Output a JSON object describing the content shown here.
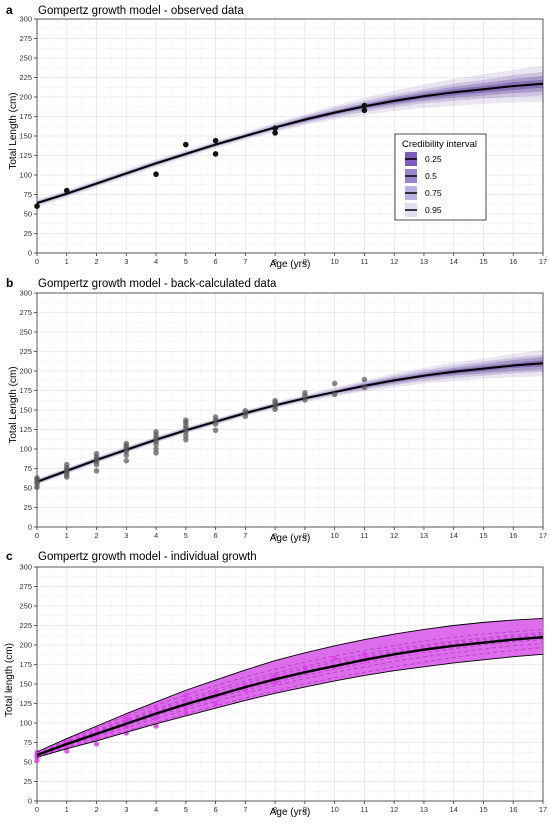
{
  "colors": {
    "observed_point": "#111111",
    "backcalc_point": "#555555",
    "growth_line": "#000000",
    "ci_fill": "#5a3a9a",
    "individual_band": "#d655e8",
    "individual_lines": "#c040d0",
    "individual_points": "#d93de8",
    "grid": "#e6e6e6"
  },
  "legend": {
    "title": "Credibility interval",
    "items": [
      "0.25",
      "0.5",
      "0.75",
      "0.95"
    ]
  },
  "panels": [
    {
      "letter": "a",
      "title": "Gompertz growth model - observed data",
      "xlabel": "Age (yrs)",
      "ylabel": "Total Length (cm)"
    },
    {
      "letter": "b",
      "title": "Gompertz growth model - back-calculated data",
      "xlabel": "Age (yrs)",
      "ylabel": "Total Length (cm)"
    },
    {
      "letter": "c",
      "title": "Gompertz growth model - individual growth",
      "xlabel": "Age (yrs)",
      "ylabel": "Total length (cm)"
    }
  ],
  "chart_data": [
    {
      "type": "scatter",
      "title": "Gompertz growth model - observed data",
      "xlabel": "Age (yrs)",
      "ylabel": "Total Length (cm)",
      "xlim": [
        0,
        17
      ],
      "ylim": [
        0,
        300
      ],
      "x_ticks": [
        0,
        1,
        2,
        3,
        4,
        5,
        6,
        7,
        8,
        9,
        10,
        11,
        12,
        13,
        14,
        15,
        16,
        17
      ],
      "y_ticks": [
        0,
        25,
        50,
        75,
        100,
        125,
        150,
        175,
        200,
        225,
        250,
        275,
        300
      ],
      "grid": true,
      "legend_placement": "right",
      "legend_title": "Credibility interval",
      "legend_items": [
        "0.25",
        "0.5",
        "0.75",
        "0.95"
      ],
      "points": [
        {
          "x": 0,
          "y": 60
        },
        {
          "x": 1,
          "y": 80
        },
        {
          "x": 4,
          "y": 101
        },
        {
          "x": 5,
          "y": 139
        },
        {
          "x": 6,
          "y": 144
        },
        {
          "x": 6,
          "y": 127
        },
        {
          "x": 8,
          "y": 160
        },
        {
          "x": 8,
          "y": 154
        },
        {
          "x": 11,
          "y": 189
        },
        {
          "x": 11,
          "y": 183
        }
      ],
      "curve": {
        "x": [
          0,
          1,
          2,
          3,
          4,
          5,
          6,
          7,
          8,
          9,
          10,
          11,
          12,
          13,
          14,
          15,
          16,
          17
        ],
        "y": [
          64,
          76,
          89,
          102,
          115,
          127,
          139,
          150,
          161,
          171,
          180,
          188,
          195,
          201,
          206,
          210,
          214,
          217
        ]
      },
      "ci_half_width": {
        "0.25": [
          1,
          1,
          1,
          1,
          1,
          1,
          1,
          1,
          1,
          2,
          2,
          2,
          3,
          3,
          4,
          4,
          5,
          5
        ],
        "0.5": [
          2,
          2,
          2,
          2,
          2,
          2,
          2,
          2,
          2,
          3,
          3,
          4,
          5,
          6,
          7,
          8,
          9,
          10
        ],
        "0.75": [
          3,
          3,
          3,
          3,
          3,
          3,
          3,
          3,
          4,
          5,
          6,
          7,
          8,
          9,
          11,
          12,
          14,
          15
        ],
        "0.95": [
          5,
          5,
          5,
          5,
          5,
          5,
          5,
          5,
          6,
          7,
          9,
          11,
          13,
          15,
          17,
          19,
          21,
          23
        ]
      }
    },
    {
      "type": "scatter",
      "title": "Gompertz growth model - back-calculated data",
      "xlabel": "Age (yrs)",
      "ylabel": "Total Length (cm)",
      "xlim": [
        0,
        17
      ],
      "ylim": [
        0,
        300
      ],
      "x_ticks": [
        0,
        1,
        2,
        3,
        4,
        5,
        6,
        7,
        8,
        9,
        10,
        11,
        12,
        13,
        14,
        15,
        16,
        17
      ],
      "y_ticks": [
        0,
        25,
        50,
        75,
        100,
        125,
        150,
        175,
        200,
        225,
        250,
        275,
        300
      ],
      "grid": true,
      "points": [
        {
          "x": 0,
          "y": 51
        },
        {
          "x": 0,
          "y": 55
        },
        {
          "x": 0,
          "y": 58
        },
        {
          "x": 0,
          "y": 61
        },
        {
          "x": 0,
          "y": 63
        },
        {
          "x": 1,
          "y": 64
        },
        {
          "x": 1,
          "y": 67
        },
        {
          "x": 1,
          "y": 70
        },
        {
          "x": 1,
          "y": 73
        },
        {
          "x": 1,
          "y": 76
        },
        {
          "x": 1,
          "y": 80
        },
        {
          "x": 2,
          "y": 72
        },
        {
          "x": 2,
          "y": 80
        },
        {
          "x": 2,
          "y": 84
        },
        {
          "x": 2,
          "y": 87
        },
        {
          "x": 2,
          "y": 90
        },
        {
          "x": 2,
          "y": 94
        },
        {
          "x": 3,
          "y": 85
        },
        {
          "x": 3,
          "y": 92
        },
        {
          "x": 3,
          "y": 97
        },
        {
          "x": 3,
          "y": 101
        },
        {
          "x": 3,
          "y": 104
        },
        {
          "x": 3,
          "y": 107
        },
        {
          "x": 4,
          "y": 95
        },
        {
          "x": 4,
          "y": 100
        },
        {
          "x": 4,
          "y": 106
        },
        {
          "x": 4,
          "y": 110
        },
        {
          "x": 4,
          "y": 114
        },
        {
          "x": 4,
          "y": 118
        },
        {
          "x": 4,
          "y": 122
        },
        {
          "x": 5,
          "y": 112
        },
        {
          "x": 5,
          "y": 117
        },
        {
          "x": 5,
          "y": 122
        },
        {
          "x": 5,
          "y": 126
        },
        {
          "x": 5,
          "y": 130
        },
        {
          "x": 5,
          "y": 134
        },
        {
          "x": 5,
          "y": 137
        },
        {
          "x": 6,
          "y": 124
        },
        {
          "x": 6,
          "y": 132
        },
        {
          "x": 6,
          "y": 137
        },
        {
          "x": 6,
          "y": 141
        },
        {
          "x": 7,
          "y": 142
        },
        {
          "x": 7,
          "y": 146
        },
        {
          "x": 7,
          "y": 149
        },
        {
          "x": 8,
          "y": 151
        },
        {
          "x": 8,
          "y": 155
        },
        {
          "x": 8,
          "y": 159
        },
        {
          "x": 8,
          "y": 162
        },
        {
          "x": 9,
          "y": 163
        },
        {
          "x": 9,
          "y": 168
        },
        {
          "x": 9,
          "y": 172
        },
        {
          "x": 10,
          "y": 170
        },
        {
          "x": 10,
          "y": 184
        },
        {
          "x": 11,
          "y": 179
        },
        {
          "x": 11,
          "y": 189
        }
      ],
      "curve": {
        "x": [
          0,
          1,
          2,
          3,
          4,
          5,
          6,
          7,
          8,
          9,
          10,
          11,
          12,
          13,
          14,
          15,
          16,
          17
        ],
        "y": [
          58,
          72,
          86,
          99,
          112,
          124,
          135,
          146,
          156,
          165,
          173,
          181,
          188,
          194,
          199,
          203,
          207,
          210
        ]
      },
      "ci_half_width": {
        "0.25": [
          1,
          1,
          1,
          1,
          1,
          1,
          1,
          1,
          1,
          1,
          1,
          2,
          2,
          2,
          3,
          3,
          3,
          4
        ],
        "0.5": [
          2,
          2,
          2,
          2,
          2,
          2,
          2,
          2,
          2,
          2,
          2,
          3,
          4,
          4,
          5,
          6,
          7,
          8
        ],
        "0.75": [
          3,
          3,
          3,
          3,
          3,
          3,
          3,
          3,
          3,
          3,
          4,
          5,
          6,
          7,
          8,
          9,
          10,
          11
        ],
        "0.95": [
          4,
          4,
          4,
          4,
          4,
          4,
          4,
          4,
          4,
          5,
          6,
          7,
          9,
          10,
          12,
          13,
          15,
          17
        ]
      }
    },
    {
      "type": "line",
      "title": "Gompertz growth model - individual growth",
      "xlabel": "Age (yrs)",
      "ylabel": "Total length (cm)",
      "xlim": [
        0,
        17
      ],
      "ylim": [
        0,
        300
      ],
      "x_ticks": [
        0,
        1,
        2,
        3,
        4,
        5,
        6,
        7,
        8,
        9,
        10,
        11,
        12,
        13,
        14,
        15,
        16,
        17
      ],
      "y_ticks": [
        0,
        25,
        50,
        75,
        100,
        125,
        150,
        175,
        200,
        225,
        250,
        275,
        300
      ],
      "grid": true,
      "mean_curve": {
        "x": [
          0,
          1,
          2,
          3,
          4,
          5,
          6,
          7,
          8,
          9,
          10,
          11,
          12,
          13,
          14,
          15,
          16,
          17
        ],
        "y": [
          59,
          73,
          86,
          99,
          112,
          124,
          135,
          146,
          156,
          165,
          173,
          181,
          188,
          194,
          199,
          203,
          207,
          210
        ]
      },
      "upper_curve": {
        "x": [
          0,
          1,
          2,
          3,
          4,
          5,
          6,
          7,
          8,
          9,
          10,
          11,
          12,
          13,
          14,
          15,
          16,
          17
        ],
        "y": [
          63,
          80,
          96,
          112,
          127,
          142,
          155,
          168,
          180,
          190,
          199,
          207,
          214,
          220,
          225,
          229,
          232,
          234
        ]
      },
      "lower_curve": {
        "x": [
          0,
          1,
          2,
          3,
          4,
          5,
          6,
          7,
          8,
          9,
          10,
          11,
          12,
          13,
          14,
          15,
          16,
          17
        ],
        "y": [
          56,
          67,
          77,
          88,
          99,
          109,
          119,
          129,
          138,
          146,
          154,
          161,
          167,
          172,
          177,
          181,
          185,
          188
        ]
      },
      "individual_curves": [
        {
          "x": [
            0,
            1,
            2,
            3,
            4,
            5,
            6,
            7,
            8,
            9,
            10,
            11,
            12,
            13,
            14,
            15,
            16,
            17
          ],
          "y": [
            61,
            78,
            94,
            109,
            123,
            136,
            148,
            159,
            169,
            178,
            186,
            193,
            199,
            205,
            210,
            214,
            217,
            220
          ]
        },
        {
          "x": [
            0,
            1,
            2,
            3,
            4,
            5,
            6,
            7,
            8,
            9,
            10,
            11,
            12,
            13,
            14,
            15,
            16,
            17
          ],
          "y": [
            60,
            76,
            91,
            105,
            118,
            131,
            143,
            154,
            164,
            173,
            181,
            188,
            195,
            200,
            205,
            209,
            213,
            216
          ]
        },
        {
          "x": [
            0,
            1,
            2,
            3,
            4,
            5,
            6,
            7,
            8,
            9,
            10,
            11,
            12,
            13,
            14,
            15,
            16,
            17
          ],
          "y": [
            58,
            72,
            85,
            98,
            111,
            123,
            134,
            145,
            155,
            164,
            172,
            180,
            187,
            193,
            198,
            202,
            206,
            209
          ]
        },
        {
          "x": [
            0,
            1,
            2,
            3,
            4,
            5,
            6,
            7,
            8,
            9,
            10,
            11,
            12,
            13,
            14,
            15,
            16,
            17
          ],
          "y": [
            57,
            70,
            82,
            94,
            106,
            117,
            128,
            138,
            148,
            157,
            165,
            172,
            179,
            185,
            190,
            195,
            199,
            202
          ]
        },
        {
          "x": [
            0,
            1,
            2,
            3,
            4,
            5,
            6,
            7,
            8,
            9,
            10,
            11,
            12,
            13,
            14,
            15,
            16,
            17
          ],
          "y": [
            56,
            68,
            79,
            90,
            101,
            112,
            122,
            132,
            141,
            150,
            158,
            165,
            172,
            178,
            184,
            189,
            193,
            197
          ]
        },
        {
          "x": [
            0,
            1,
            2,
            3,
            4,
            5,
            6,
            7,
            8,
            9,
            10,
            11,
            12,
            13,
            14,
            15,
            16,
            17
          ],
          "y": [
            60,
            75,
            89,
            103,
            116,
            128,
            140,
            151,
            161,
            170,
            178,
            185,
            192,
            198,
            203,
            207,
            211,
            214
          ]
        },
        {
          "x": [
            0,
            1,
            2,
            3,
            4,
            5,
            6,
            7,
            8,
            9,
            10,
            11,
            12,
            13,
            14,
            15,
            16,
            17
          ],
          "y": [
            59,
            74,
            88,
            101,
            114,
            126,
            137,
            148,
            158,
            167,
            175,
            183,
            190,
            196,
            201,
            205,
            209,
            212
          ]
        },
        {
          "x": [
            0,
            1,
            2,
            3,
            4,
            5,
            6,
            7,
            8,
            9,
            10,
            11,
            12,
            13,
            14,
            15,
            16,
            17
          ],
          "y": [
            57,
            71,
            84,
            97,
            109,
            121,
            132,
            142,
            152,
            161,
            169,
            177,
            184,
            190,
            195,
            200,
            204,
            207
          ]
        }
      ],
      "points": [
        {
          "x": 0,
          "y": 52
        },
        {
          "x": 0,
          "y": 56
        },
        {
          "x": 0,
          "y": 59
        },
        {
          "x": 0,
          "y": 62
        },
        {
          "x": 1,
          "y": 64
        },
        {
          "x": 1,
          "y": 69
        },
        {
          "x": 1,
          "y": 73
        },
        {
          "x": 1,
          "y": 77
        },
        {
          "x": 2,
          "y": 73
        },
        {
          "x": 2,
          "y": 81
        },
        {
          "x": 2,
          "y": 87
        },
        {
          "x": 2,
          "y": 93
        },
        {
          "x": 3,
          "y": 87
        },
        {
          "x": 3,
          "y": 96
        },
        {
          "x": 3,
          "y": 102
        },
        {
          "x": 3,
          "y": 107
        },
        {
          "x": 4,
          "y": 96
        },
        {
          "x": 4,
          "y": 106
        },
        {
          "x": 4,
          "y": 113
        },
        {
          "x": 4,
          "y": 120
        },
        {
          "x": 5,
          "y": 113
        },
        {
          "x": 5,
          "y": 121
        },
        {
          "x": 5,
          "y": 128
        },
        {
          "x": 5,
          "y": 135
        },
        {
          "x": 6,
          "y": 125
        },
        {
          "x": 6,
          "y": 134
        },
        {
          "x": 6,
          "y": 140
        },
        {
          "x": 7,
          "y": 143
        },
        {
          "x": 7,
          "y": 148
        },
        {
          "x": 8,
          "y": 152
        },
        {
          "x": 8,
          "y": 157
        },
        {
          "x": 8,
          "y": 161
        },
        {
          "x": 9,
          "y": 165
        },
        {
          "x": 9,
          "y": 171
        },
        {
          "x": 10,
          "y": 172
        },
        {
          "x": 10,
          "y": 183
        },
        {
          "x": 11,
          "y": 181
        },
        {
          "x": 11,
          "y": 188
        }
      ]
    }
  ]
}
